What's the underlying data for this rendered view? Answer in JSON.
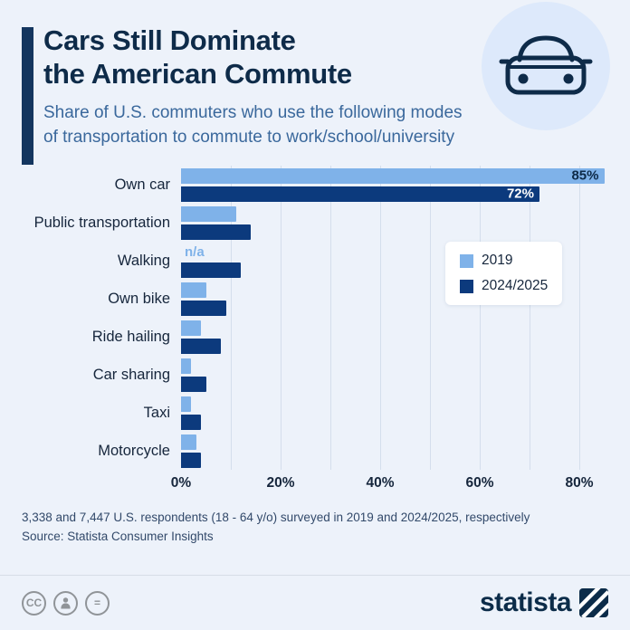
{
  "header": {
    "title_line1": "Cars Still Dominate",
    "title_line2": "the American Commute",
    "subtitle_line1": "Share of U.S. commuters who use the following modes",
    "subtitle_line2": "of transportation to commute to work/school/university"
  },
  "chart_data": {
    "type": "bar",
    "orientation": "horizontal",
    "categories": [
      "Own car",
      "Public transportation",
      "Walking",
      "Own bike",
      "Ride hailing",
      "Car sharing",
      "Taxi",
      "Motorcycle"
    ],
    "series": [
      {
        "name": "2019",
        "color": "#7fb2e9",
        "values": [
          85,
          11,
          null,
          5,
          4,
          2,
          2,
          3
        ],
        "value_labels": [
          "85%",
          null,
          "n/a",
          null,
          null,
          null,
          null,
          null
        ]
      },
      {
        "name": "2024/2025",
        "color": "#0c3a7d",
        "values": [
          72,
          14,
          12,
          9,
          8,
          5,
          4,
          4
        ],
        "value_labels": [
          "72%",
          null,
          null,
          null,
          null,
          null,
          null,
          null
        ]
      }
    ],
    "x_ticks": [
      "0%",
      "20%",
      "40%",
      "60%",
      "80%"
    ],
    "x_tick_values": [
      0,
      20,
      40,
      60,
      80
    ],
    "xlim": [
      0,
      85
    ],
    "grid": true,
    "gridline_step": 10,
    "legend_position": "middle-right"
  },
  "footer": {
    "note": "3,338 and 7,447 U.S. respondents (18 - 64 y/o) surveyed in 2019 and 2024/2025, respectively",
    "source": "Source: Statista Consumer Insights",
    "brand": "statista"
  },
  "colors": {
    "background": "#edf2fa",
    "accent_navy": "#14365f",
    "title_navy": "#0e2b49",
    "subtitle_blue": "#3a689c",
    "series_2019": "#7fb2e9",
    "series_2024": "#0c3a7d"
  }
}
